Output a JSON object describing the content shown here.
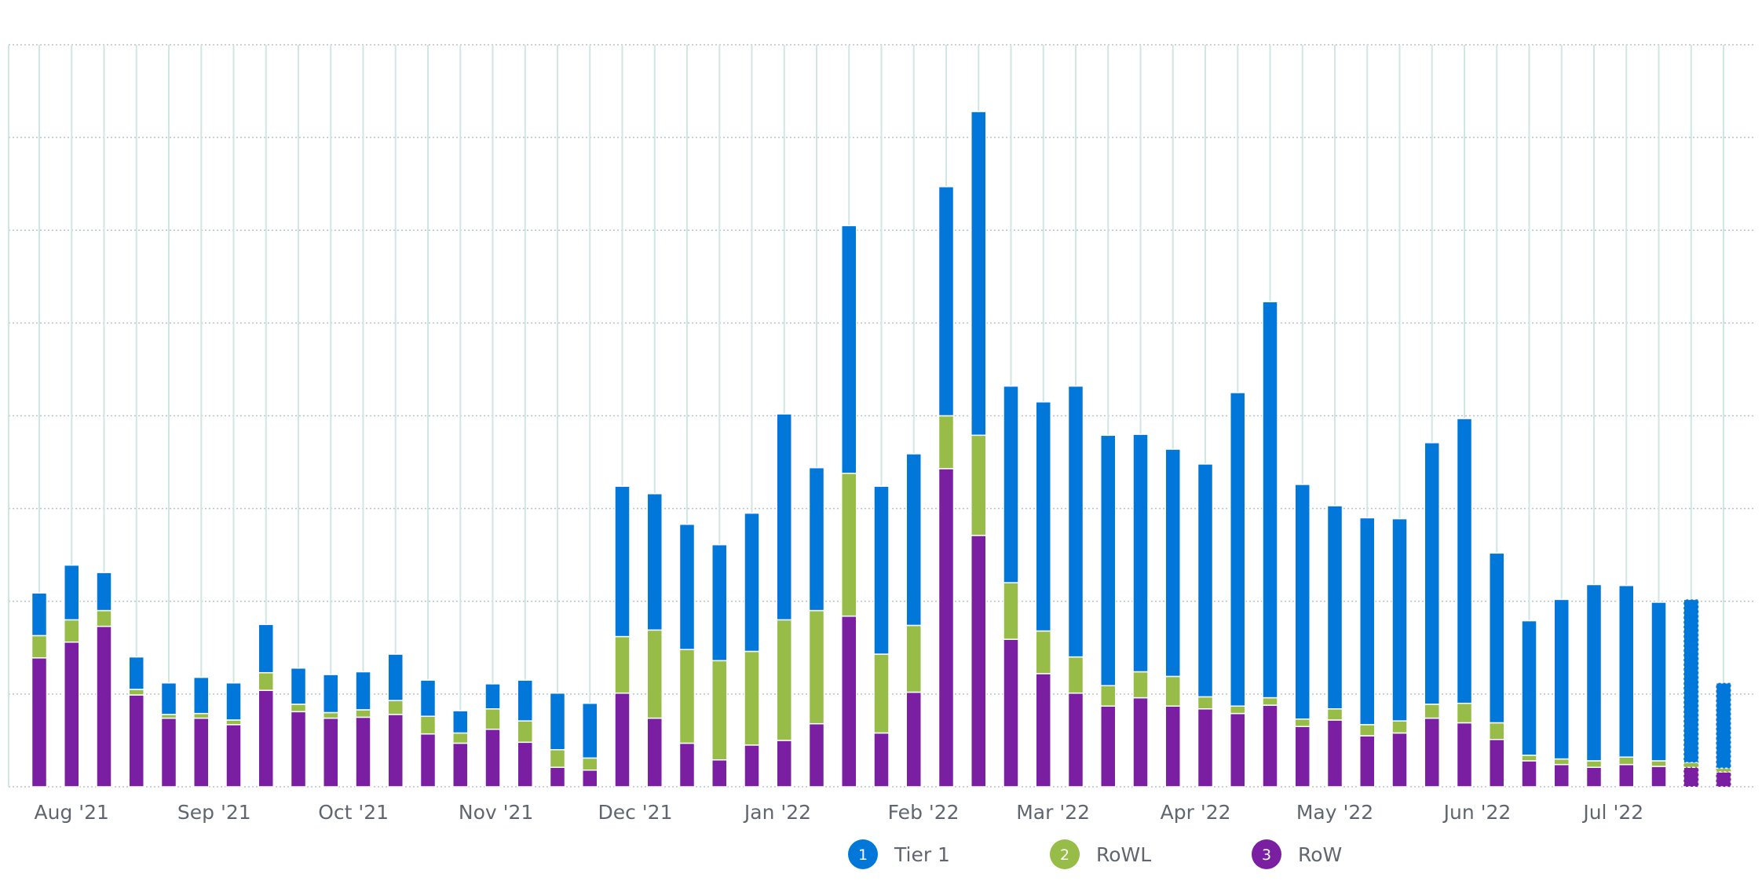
{
  "chart_data": {
    "type": "bar",
    "stacked": true,
    "title": "",
    "xlabel": "",
    "ylabel": "",
    "ylim": [
      0,
      800
    ],
    "grid": true,
    "legend_position": "bottom-center",
    "month_ticks": [
      {
        "label": "Aug '21",
        "index": 1
      },
      {
        "label": "Sep '21",
        "index": 5.4
      },
      {
        "label": "Oct '21",
        "index": 9.7
      },
      {
        "label": "Nov '21",
        "index": 14.1
      },
      {
        "label": "Dec '21",
        "index": 18.4
      },
      {
        "label": "Jan '22",
        "index": 22.8
      },
      {
        "label": "Feb '22",
        "index": 27.3
      },
      {
        "label": "Mar '22",
        "index": 31.3
      },
      {
        "label": "Apr '22",
        "index": 35.7
      },
      {
        "label": "May '22",
        "index": 40
      },
      {
        "label": "Jun '22",
        "index": 44.4
      },
      {
        "label": "Jul '22",
        "index": 48.6
      }
    ],
    "incomplete_bars": [
      51,
      52
    ],
    "series": [
      {
        "name": "RoW",
        "legend_number": "3",
        "color": "#7b1fa2",
        "values": [
          139,
          156,
          173,
          99,
          74,
          74,
          67,
          104,
          81,
          74,
          75,
          78,
          57,
          47,
          62,
          48,
          21,
          18,
          101,
          74,
          47,
          29,
          45,
          50,
          68,
          184,
          58,
          102,
          343,
          271,
          159,
          122,
          101,
          87,
          96,
          87,
          84,
          79,
          88,
          65,
          72,
          55,
          58,
          74,
          69,
          51,
          28,
          24,
          21,
          24,
          22,
          21,
          16
        ]
      },
      {
        "name": "RoWL",
        "legend_number": "2",
        "color": "#97bc47",
        "values": [
          24,
          24,
          17,
          6,
          4,
          5,
          5,
          19,
          8,
          6,
          8,
          15,
          19,
          11,
          22,
          23,
          19,
          13,
          61,
          95,
          101,
          107,
          101,
          130,
          122,
          154,
          85,
          72,
          57,
          108,
          61,
          46,
          39,
          22,
          28,
          32,
          13,
          8,
          8,
          8,
          12,
          12,
          13,
          15,
          21,
          18,
          6,
          6,
          7,
          8,
          6,
          5,
          4
        ]
      },
      {
        "name": "Tier 1",
        "legend_number": "1",
        "color": "#0077d9",
        "values": [
          46,
          59,
          41,
          35,
          34,
          39,
          40,
          52,
          39,
          41,
          41,
          50,
          39,
          24,
          27,
          44,
          61,
          59,
          162,
          147,
          135,
          125,
          149,
          222,
          154,
          267,
          181,
          185,
          247,
          349,
          212,
          247,
          292,
          270,
          256,
          245,
          251,
          338,
          427,
          253,
          219,
          223,
          218,
          282,
          307,
          183,
          145,
          172,
          190,
          185,
          171,
          176,
          92
        ]
      }
    ],
    "legend": [
      {
        "number": "1",
        "label": "Tier 1",
        "color": "#0077d9"
      },
      {
        "number": "2",
        "label": "RoWL",
        "color": "#97bc47"
      },
      {
        "number": "3",
        "label": "RoW",
        "color": "#7b1fa2"
      }
    ]
  }
}
